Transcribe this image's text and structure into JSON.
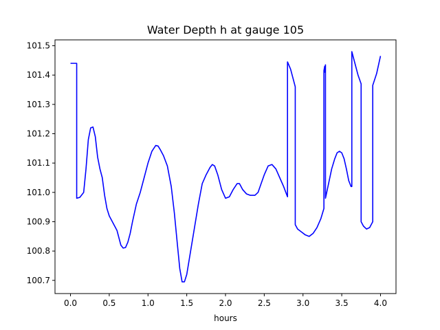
{
  "chart_data": {
    "type": "line",
    "title": "Water Depth h at gauge 105",
    "xlabel": "hours",
    "ylabel": "",
    "xlim": [
      -0.2,
      4.2
    ],
    "ylim": [
      100.655,
      101.52
    ],
    "xticks": [
      0.0,
      0.5,
      1.0,
      1.5,
      2.0,
      2.5,
      3.0,
      3.5,
      4.0
    ],
    "xtick_labels": [
      "0.0",
      "0.5",
      "1.0",
      "1.5",
      "2.0",
      "2.5",
      "3.0",
      "3.5",
      "4.0"
    ],
    "yticks": [
      100.7,
      100.8,
      100.9,
      101.0,
      101.1,
      101.2,
      101.3,
      101.4,
      101.5
    ],
    "ytick_labels": [
      "100.7",
      "100.8",
      "100.9",
      "101.0",
      "101.1",
      "101.2",
      "101.3",
      "101.4",
      "101.5"
    ],
    "grid": false,
    "series": [
      {
        "color": "#0000ff",
        "x": [
          0.0,
          0.05,
          0.08,
          0.08,
          0.12,
          0.17,
          0.2,
          0.23,
          0.26,
          0.29,
          0.32,
          0.35,
          0.38,
          0.41,
          0.44,
          0.47,
          0.5,
          0.55,
          0.6,
          0.65,
          0.68,
          0.71,
          0.74,
          0.77,
          0.8,
          0.85,
          0.9,
          0.95,
          1.0,
          1.05,
          1.1,
          1.13,
          1.16,
          1.2,
          1.25,
          1.3,
          1.34,
          1.38,
          1.41,
          1.44,
          1.47,
          1.5,
          1.55,
          1.6,
          1.65,
          1.7,
          1.75,
          1.8,
          1.83,
          1.86,
          1.9,
          1.95,
          2.0,
          2.05,
          2.1,
          2.15,
          2.18,
          2.22,
          2.27,
          2.32,
          2.38,
          2.42,
          2.46,
          2.5,
          2.55,
          2.6,
          2.65,
          2.7,
          2.75,
          2.8,
          2.8,
          2.84,
          2.88,
          2.9,
          2.9,
          2.93,
          2.98,
          3.03,
          3.08,
          3.13,
          3.18,
          3.23,
          3.27,
          3.27,
          3.28,
          3.28,
          3.29,
          3.29,
          3.33,
          3.37,
          3.41,
          3.44,
          3.47,
          3.5,
          3.53,
          3.56,
          3.59,
          3.62,
          3.63,
          3.63,
          3.67,
          3.71,
          3.75,
          3.75,
          3.78,
          3.82,
          3.86,
          3.9,
          3.9,
          3.95,
          4.0
        ],
        "y": [
          101.44,
          101.44,
          101.44,
          100.98,
          100.983,
          101.0,
          101.08,
          101.18,
          101.22,
          101.223,
          101.19,
          101.12,
          101.08,
          101.05,
          100.99,
          100.945,
          100.92,
          100.895,
          100.87,
          100.82,
          100.81,
          100.812,
          100.83,
          100.86,
          100.9,
          100.96,
          101.0,
          101.05,
          101.1,
          101.14,
          101.16,
          101.158,
          101.145,
          101.125,
          101.09,
          101.02,
          100.93,
          100.82,
          100.74,
          100.695,
          100.695,
          100.72,
          100.8,
          100.88,
          100.96,
          101.03,
          101.06,
          101.085,
          101.095,
          101.09,
          101.06,
          101.01,
          100.98,
          100.985,
          101.01,
          101.03,
          101.03,
          101.01,
          100.995,
          100.99,
          100.99,
          101.0,
          101.03,
          101.06,
          101.09,
          101.095,
          101.08,
          101.05,
          101.02,
          100.985,
          101.445,
          101.42,
          101.38,
          101.36,
          100.89,
          100.875,
          100.865,
          100.855,
          100.85,
          100.86,
          100.88,
          100.91,
          100.945,
          101.415,
          101.43,
          101.41,
          101.435,
          100.98,
          101.03,
          101.08,
          101.115,
          101.135,
          101.14,
          101.135,
          101.115,
          101.08,
          101.04,
          101.02,
          101.02,
          101.48,
          101.44,
          101.4,
          101.37,
          100.9,
          100.885,
          100.875,
          100.88,
          100.9,
          101.365,
          101.405,
          101.465
        ]
      }
    ]
  }
}
